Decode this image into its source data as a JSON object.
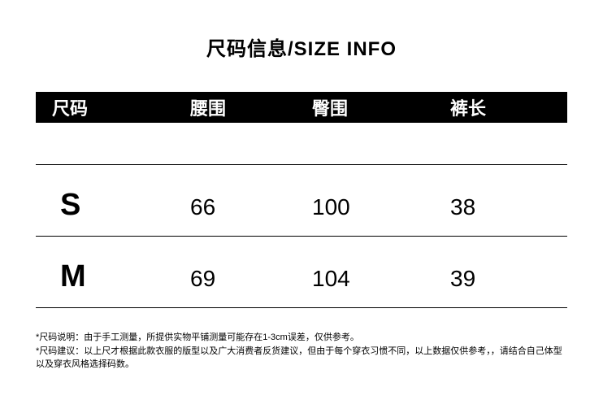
{
  "title": "尺码信息/SIZE INFO",
  "table": {
    "headers": {
      "col1": "尺码",
      "col2": "腰围",
      "col3": "臀围",
      "col4": "裤长"
    },
    "rows": [
      {
        "size": "S",
        "waist": "66",
        "hip": "100",
        "length": "38"
      },
      {
        "size": "M",
        "waist": "69",
        "hip": "104",
        "length": "39"
      }
    ]
  },
  "notes": {
    "line1": "*尺码说明：由于手工测量，所提供实物平铺测量可能存在1-3cm误差，仅供参考。",
    "line2": "*尺码建议：以上尺才根据此款衣服的版型以及广大消费者反货建议，但由于每个穿衣习惯不同，以上数据仅供参考，，请结合自己体型以及穿衣风格选择码数。"
  },
  "colors": {
    "background": "#ffffff",
    "header_bg": "#000000",
    "header_text": "#ffffff",
    "text": "#000000",
    "border": "#000000"
  },
  "typography": {
    "title_fontsize": 24,
    "header_fontsize": 22,
    "size_fontsize": 38,
    "data_fontsize": 28,
    "notes_fontsize": 11
  }
}
